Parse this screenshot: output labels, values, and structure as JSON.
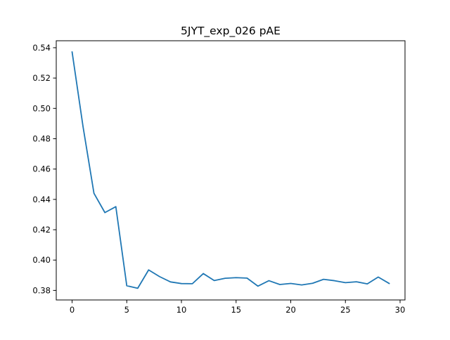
{
  "chart_data": {
    "type": "line",
    "title": "5JYT_exp_026 pAE",
    "xlabel": "",
    "ylabel": "",
    "xlim": [
      -1.45,
      30.45
    ],
    "ylim": [
      0.3737,
      0.5446
    ],
    "xticks": [
      0,
      5,
      10,
      15,
      20,
      25,
      30
    ],
    "yticks": [
      0.38,
      0.4,
      0.42,
      0.44,
      0.46,
      0.48,
      0.5,
      0.52,
      0.54
    ],
    "grid": false,
    "series": [
      {
        "color": "#1f77b4",
        "x": [
          0,
          1,
          2,
          3,
          4,
          5,
          6,
          7,
          8,
          9,
          10,
          11,
          12,
          13,
          14,
          15,
          16,
          17,
          18,
          19,
          20,
          21,
          22,
          23,
          24,
          25,
          26,
          27,
          28,
          29
        ],
        "values": [
          0.5372,
          0.488,
          0.444,
          0.4313,
          0.4352,
          0.3831,
          0.3814,
          0.3935,
          0.3891,
          0.3856,
          0.3845,
          0.3844,
          0.3911,
          0.3865,
          0.388,
          0.3884,
          0.3881,
          0.3828,
          0.3864,
          0.3839,
          0.3846,
          0.3836,
          0.3847,
          0.3873,
          0.3864,
          0.3851,
          0.3857,
          0.3843,
          0.3888,
          0.3846
        ]
      }
    ]
  }
}
